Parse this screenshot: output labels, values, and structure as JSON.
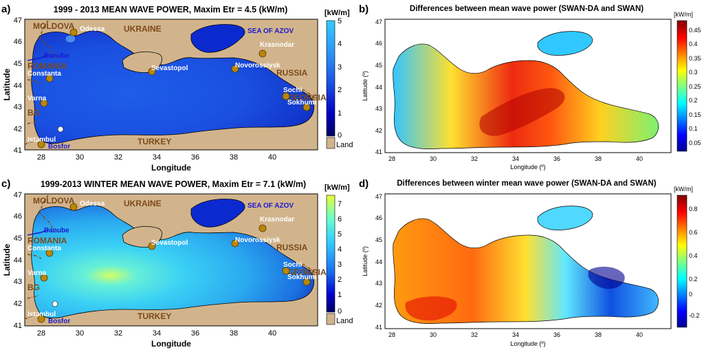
{
  "colors": {
    "land": "#d2b48c",
    "city_marker": "#b8860b",
    "country_label": "#7a4a1a",
    "sea_label": "#1a1acc",
    "danube": "#1a1acc",
    "border": "#7a4a1a",
    "coast": "#000000"
  },
  "panels": [
    {
      "panel_letter": "a)",
      "title": "1999 - 2013  MEAN WAVE POWER, Maxim Etr = 4.5 (kW/m)",
      "xlabel": "Longitude",
      "ylabel": "Latitude",
      "xticks": [
        "28",
        "30",
        "32",
        "34",
        "36",
        "38",
        "40"
      ],
      "yticks": [
        "47",
        "46",
        "45",
        "44",
        "43",
        "42",
        "41"
      ],
      "colorbar_unit": "[kW/m]",
      "colorbar_ticks": [
        "5",
        "4",
        "3",
        "2",
        "1",
        "0"
      ],
      "colorbar_land_label": "Land",
      "country_labels": [
        "MOLDOVA",
        "UKRAINE",
        "ROMANIA",
        "RUSSIA",
        "BG",
        "GEORGIA",
        "TURKEY"
      ],
      "sea_labels": [
        "SEA OF AZOV",
        "Danube",
        "Bosfor"
      ],
      "cities": [
        "Odessa",
        "Krasnodar",
        "Constanta",
        "Sevastopol",
        "Novorossiysk",
        "Varna",
        "Sochi",
        "Sokhumi",
        "Istambul"
      ],
      "colormap": "blue"
    },
    {
      "panel_letter": "b)",
      "title": "Differences between mean wave power (SWAN-DA and SWAN)",
      "xlabel": "Longitude (º)",
      "ylabel": "Latitude (º)",
      "xticks": [
        "28",
        "30",
        "32",
        "34",
        "36",
        "38",
        "40"
      ],
      "yticks": [
        "47",
        "46",
        "45",
        "44",
        "43",
        "42",
        "41"
      ],
      "colorbar_unit": "[kW/m]",
      "colorbar_ticks": [
        "0.45",
        "0.4",
        "0.35",
        "0.3",
        "0.25",
        "0.2",
        "0.15",
        "0.1",
        "0.05"
      ],
      "colormap": "jet"
    },
    {
      "panel_letter": "c)",
      "title": "1999-2013 WINTER MEAN WAVE POWER, Maxim Etr = 7.1 (kW/m)",
      "xlabel": "Longitude",
      "ylabel": "Latitude",
      "xticks": [
        "28",
        "30",
        "32",
        "34",
        "36",
        "38",
        "40"
      ],
      "yticks": [
        "47",
        "46",
        "45",
        "44",
        "43",
        "42",
        "41"
      ],
      "colorbar_unit": "[kW/m]",
      "colorbar_ticks": [
        "7",
        "6",
        "5",
        "4",
        "3",
        "2",
        "1",
        "0"
      ],
      "colorbar_land_label": "Land",
      "country_labels": [
        "MOLDOVA",
        "UKRAINE",
        "ROMANIA",
        "RUSSIA",
        "BG",
        "GEORGIA",
        "TURKEY"
      ],
      "sea_labels": [
        "SEA OF AZOV",
        "Danube",
        "Bosfor"
      ],
      "cities": [
        "Odessa",
        "Krasnodar",
        "Constanta",
        "Sevastopol",
        "Novorossiysk",
        "Varna",
        "Sochi",
        "Sokhumi",
        "Istambul"
      ],
      "colormap": "winter"
    },
    {
      "panel_letter": "d)",
      "title": "Differences between winter mean wave power (SWAN-DA and SWAN)",
      "xlabel": "Longitude (º)",
      "ylabel": "Latitude (º)",
      "xticks": [
        "28",
        "30",
        "32",
        "34",
        "36",
        "38",
        "40"
      ],
      "yticks": [
        "47",
        "46",
        "45",
        "44",
        "43",
        "42",
        "41"
      ],
      "colorbar_unit": "[kW/m]",
      "colorbar_ticks": [
        "0.8",
        "0.6",
        "0.4",
        "0.2",
        "0",
        "-0.2"
      ],
      "colormap": "jet"
    }
  ]
}
